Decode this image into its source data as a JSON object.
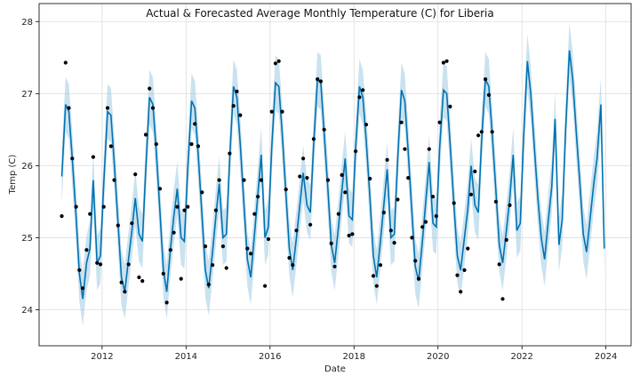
{
  "chart_data": {
    "type": "line",
    "title": "Actual & Forecasted Average Monthly Temperature (C) for Liberia",
    "xlabel": "Date",
    "ylabel": "Temp (C)",
    "xlim": [
      2010.5,
      2024.6
    ],
    "ylim": [
      23.5,
      28.25
    ],
    "x_ticks": [
      2012,
      2014,
      2016,
      2018,
      2020,
      2022,
      2024
    ],
    "y_ticks": [
      24,
      25,
      26,
      27,
      28
    ],
    "grid": true,
    "colors": {
      "forecast": "#0072B2",
      "band": "#9ecae1",
      "actual": "#000000"
    },
    "series": [
      {
        "name": "actual",
        "kind": "scatter",
        "x": [
          2011.04,
          2011.13,
          2011.21,
          2011.29,
          2011.38,
          2011.46,
          2011.54,
          2011.63,
          2011.71,
          2011.79,
          2011.88,
          2011.96,
          2012.04,
          2012.13,
          2012.21,
          2012.29,
          2012.38,
          2012.46,
          2012.54,
          2012.63,
          2012.71,
          2012.79,
          2012.88,
          2012.96,
          2013.04,
          2013.13,
          2013.21,
          2013.29,
          2013.38,
          2013.46,
          2013.54,
          2013.63,
          2013.71,
          2013.79,
          2013.88,
          2013.96,
          2014.04,
          2014.13,
          2014.21,
          2014.29,
          2014.38,
          2014.46,
          2014.54,
          2014.63,
          2014.71,
          2014.79,
          2014.88,
          2014.96,
          2015.04,
          2015.13,
          2015.21,
          2015.29,
          2015.38,
          2015.46,
          2015.54,
          2015.63,
          2015.71,
          2015.79,
          2015.88,
          2015.96,
          2016.04,
          2016.13,
          2016.21,
          2016.29,
          2016.38,
          2016.46,
          2016.54,
          2016.63,
          2016.71,
          2016.79,
          2016.88,
          2016.96,
          2017.04,
          2017.13,
          2017.21,
          2017.29,
          2017.38,
          2017.46,
          2017.54,
          2017.63,
          2017.71,
          2017.79,
          2017.88,
          2017.96,
          2018.04,
          2018.13,
          2018.21,
          2018.29,
          2018.38,
          2018.46,
          2018.54,
          2018.63,
          2018.71,
          2018.79,
          2018.88,
          2018.96,
          2019.04,
          2019.13,
          2019.21,
          2019.29,
          2019.38,
          2019.46,
          2019.54,
          2019.63,
          2019.71,
          2019.79,
          2019.88,
          2019.96,
          2020.04,
          2020.13,
          2020.21,
          2020.29,
          2020.38,
          2020.46,
          2020.54,
          2020.63,
          2020.71,
          2020.79,
          2020.88,
          2020.96,
          2021.04,
          2021.13,
          2021.21,
          2021.29,
          2021.38,
          2021.46,
          2021.54,
          2021.63,
          2021.71
        ],
        "y": [
          25.3,
          27.43,
          26.8,
          26.1,
          25.43,
          24.55,
          24.3,
          24.83,
          25.33,
          26.12,
          24.65,
          24.63,
          25.43,
          26.8,
          26.27,
          25.8,
          25.17,
          24.38,
          24.25,
          24.63,
          25.2,
          25.88,
          24.45,
          24.4,
          26.43,
          27.07,
          26.8,
          26.3,
          25.68,
          24.5,
          24.1,
          24.83,
          25.07,
          25.43,
          24.43,
          25.38,
          25.43,
          26.3,
          26.58,
          26.27,
          25.63,
          24.88,
          24.35,
          24.62,
          25.38,
          25.8,
          24.88,
          24.58,
          26.17,
          26.83,
          27.03,
          26.7,
          25.8,
          24.85,
          24.78,
          25.33,
          25.57,
          25.8,
          24.33,
          24.98,
          26.75,
          27.42,
          27.45,
          26.75,
          25.67,
          24.72,
          24.62,
          25.1,
          25.85,
          26.1,
          25.83,
          25.18,
          26.37,
          27.2,
          27.17,
          26.5,
          25.8,
          24.92,
          24.6,
          25.33,
          25.87,
          25.63,
          25.03,
          25.05,
          26.2,
          26.95,
          27.05,
          26.57,
          25.82,
          24.47,
          24.33,
          24.62,
          25.35,
          26.08,
          25.1,
          24.93,
          25.53,
          26.6,
          26.23,
          25.83,
          25.0,
          24.68,
          24.43,
          25.15,
          25.22,
          26.23,
          25.57,
          25.3,
          26.6,
          27.43,
          27.45,
          26.82,
          25.48,
          24.48,
          24.25,
          24.55,
          24.85,
          25.6,
          25.92,
          26.42,
          26.47,
          27.2,
          26.98,
          26.47,
          25.5,
          24.63,
          24.15,
          24.97,
          25.45
        ]
      },
      {
        "name": "forecast",
        "kind": "line",
        "x": [
          2011.04,
          2011.13,
          2011.21,
          2011.29,
          2011.38,
          2011.46,
          2011.54,
          2011.63,
          2011.71,
          2011.79,
          2011.88,
          2011.96,
          2012.04,
          2012.13,
          2012.21,
          2012.29,
          2012.38,
          2012.46,
          2012.54,
          2012.63,
          2012.71,
          2012.79,
          2012.88,
          2012.96,
          2013.04,
          2013.13,
          2013.21,
          2013.29,
          2013.38,
          2013.46,
          2013.54,
          2013.63,
          2013.71,
          2013.79,
          2013.88,
          2013.96,
          2014.04,
          2014.13,
          2014.21,
          2014.29,
          2014.38,
          2014.46,
          2014.54,
          2014.63,
          2014.71,
          2014.79,
          2014.88,
          2014.96,
          2015.04,
          2015.13,
          2015.21,
          2015.29,
          2015.38,
          2015.46,
          2015.54,
          2015.63,
          2015.71,
          2015.79,
          2015.88,
          2015.96,
          2016.04,
          2016.13,
          2016.21,
          2016.29,
          2016.38,
          2016.46,
          2016.54,
          2016.63,
          2016.71,
          2016.79,
          2016.88,
          2016.96,
          2017.04,
          2017.13,
          2017.21,
          2017.29,
          2017.38,
          2017.46,
          2017.54,
          2017.63,
          2017.71,
          2017.79,
          2017.88,
          2017.96,
          2018.04,
          2018.13,
          2018.21,
          2018.29,
          2018.38,
          2018.46,
          2018.54,
          2018.63,
          2018.71,
          2018.79,
          2018.88,
          2018.96,
          2019.04,
          2019.13,
          2019.21,
          2019.29,
          2019.38,
          2019.46,
          2019.54,
          2019.63,
          2019.71,
          2019.79,
          2019.88,
          2019.96,
          2020.04,
          2020.13,
          2020.21,
          2020.29,
          2020.38,
          2020.46,
          2020.54,
          2020.63,
          2020.71,
          2020.79,
          2020.88,
          2020.96,
          2021.04,
          2021.13,
          2021.21,
          2021.29,
          2021.38,
          2021.46,
          2021.54,
          2021.63,
          2021.71,
          2021.79,
          2021.88,
          2021.96,
          2022.04,
          2022.13,
          2022.21,
          2022.29,
          2022.38,
          2022.46,
          2022.54,
          2022.63,
          2022.71,
          2022.79,
          2022.88,
          2022.96,
          2023.04,
          2023.13,
          2023.21,
          2023.29,
          2023.38,
          2023.46,
          2023.54,
          2023.63,
          2023.71,
          2023.79,
          2023.88,
          2023.96
        ],
        "y": [
          25.85,
          26.85,
          26.75,
          26.1,
          25.3,
          24.5,
          24.15,
          24.65,
          24.85,
          25.8,
          24.65,
          24.75,
          25.75,
          26.75,
          26.7,
          26.05,
          25.2,
          24.45,
          24.25,
          24.7,
          25.1,
          25.55,
          25.05,
          24.95,
          25.95,
          26.95,
          26.85,
          26.2,
          25.35,
          24.55,
          24.25,
          24.85,
          25.3,
          25.68,
          25.0,
          24.95,
          25.95,
          26.9,
          26.8,
          26.15,
          25.3,
          24.55,
          24.3,
          24.8,
          25.3,
          25.75,
          25.0,
          25.05,
          26.1,
          27.1,
          26.95,
          26.3,
          25.45,
          24.7,
          24.45,
          25.05,
          25.6,
          26.15,
          25.0,
          25.15,
          26.25,
          27.15,
          27.1,
          26.45,
          25.6,
          24.85,
          24.55,
          25.0,
          25.45,
          25.9,
          25.45,
          25.35,
          26.3,
          27.2,
          27.15,
          26.45,
          25.65,
          24.9,
          24.65,
          25.15,
          25.65,
          26.1,
          25.3,
          25.25,
          26.25,
          27.1,
          26.95,
          26.35,
          25.55,
          24.75,
          24.45,
          24.95,
          25.45,
          25.95,
          25.0,
          25.05,
          26.1,
          27.05,
          26.9,
          26.2,
          25.35,
          24.6,
          24.4,
          24.95,
          25.5,
          26.05,
          25.2,
          25.15,
          26.25,
          27.05,
          27.0,
          26.3,
          25.45,
          24.75,
          24.55,
          25.0,
          25.4,
          26.0,
          25.45,
          25.35,
          26.35,
          27.2,
          27.1,
          26.45,
          25.65,
          24.9,
          24.65,
          25.1,
          25.55,
          26.15,
          25.1,
          25.2,
          26.4,
          27.45,
          27.0,
          26.3,
          25.55,
          25.0,
          24.7,
          25.25,
          25.7,
          26.65,
          24.9,
          25.25,
          26.5,
          27.6,
          27.2,
          26.5,
          25.75,
          25.05,
          24.8,
          25.3,
          25.75,
          26.1,
          26.85,
          24.85
        ]
      }
    ],
    "band_halfwidth": 0.38
  }
}
